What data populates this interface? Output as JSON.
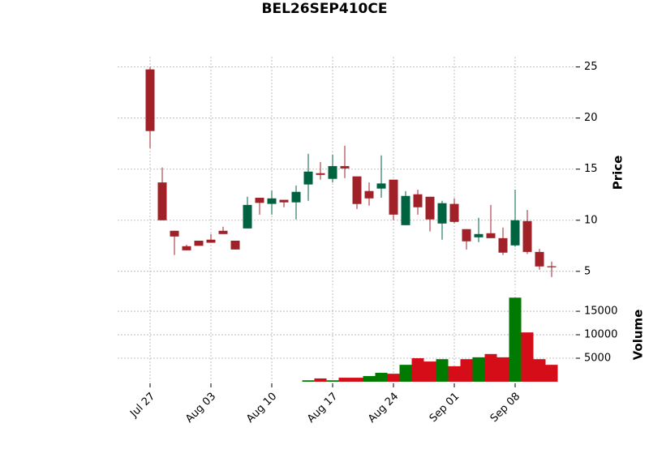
{
  "chart_data": {
    "type": "candlestick",
    "title": "BEL26SEP410CE",
    "categories": [
      "Jul 27",
      null,
      null,
      null,
      null,
      "Aug 03",
      null,
      null,
      null,
      null,
      "Aug 10",
      null,
      null,
      null,
      null,
      "Aug 17",
      null,
      null,
      null,
      null,
      "Aug 24",
      null,
      null,
      null,
      null,
      "Sep 01",
      null,
      null,
      null,
      null,
      "Sep 08",
      null,
      null,
      null
    ],
    "open": [
      24.76,
      13.7,
      8.97,
      7.46,
      8.0,
      8.1,
      8.97,
      8.0,
      9.2,
      12.2,
      11.6,
      12.0,
      11.75,
      13.5,
      14.6,
      14.05,
      15.3,
      14.29,
      12.86,
      13.1,
      13.97,
      9.52,
      12.54,
      12.3,
      9.68,
      11.6,
      9.13,
      8.33,
      8.73,
      8.25,
      7.54,
      9.92,
      6.9,
      5.5
    ],
    "high": [
      25.0,
      15.16,
      8.97,
      7.6,
      8.0,
      8.65,
      9.37,
      8.0,
      12.3,
      12.2,
      12.9,
      12.0,
      13.4,
      16.5,
      15.7,
      16.4,
      17.3,
      14.29,
      13.7,
      16.35,
      13.97,
      12.86,
      13.0,
      12.3,
      11.9,
      12.14,
      9.13,
      10.24,
      11.5,
      9.29,
      13.0,
      11.0,
      7.2,
      5.95
    ],
    "low": [
      17.06,
      10.0,
      6.6,
      7.06,
      7.5,
      7.8,
      8.65,
      7.14,
      9.2,
      10.55,
      10.55,
      11.27,
      10.08,
      11.9,
      13.97,
      13.7,
      14.13,
      11.1,
      11.43,
      12.2,
      10.0,
      9.52,
      10.55,
      8.9,
      8.1,
      9.7,
      7.14,
      7.86,
      8.25,
      6.6,
      7.4,
      6.7,
      5.16,
      4.44
    ],
    "close": [
      18.73,
      10.0,
      8.41,
      7.06,
      7.5,
      7.8,
      8.65,
      7.14,
      11.5,
      11.7,
      12.14,
      11.75,
      12.78,
      14.76,
      14.44,
      15.3,
      15.07,
      11.59,
      12.14,
      13.6,
      10.55,
      12.38,
      11.27,
      10.08,
      11.67,
      9.84,
      7.94,
      8.65,
      8.25,
      6.83,
      10.0,
      6.9,
      5.48,
      5.4
    ],
    "volume": [
      0,
      0,
      0,
      0,
      0,
      0,
      0,
      0,
      0,
      0,
      0,
      0,
      0,
      300,
      700,
      300,
      850,
      850,
      1200,
      1900,
      1700,
      3600,
      5000,
      4300,
      4800,
      3300,
      4800,
      5200,
      5900,
      5200,
      17900,
      10500,
      4800,
      3600
    ],
    "up_color": "#006340",
    "down_color": "#a02128",
    "volume_up_color": "#007a00",
    "volume_down_color": "#d50d18",
    "ylabel": "Price",
    "ylim": [
      3.4,
      26
    ],
    "yticks": [
      5,
      10,
      15,
      20,
      25
    ],
    "volume_label": "Volume",
    "volume_ylim": [
      0,
      19500
    ],
    "volume_yticks": [
      5000,
      10000,
      15000
    ],
    "grid": true
  }
}
